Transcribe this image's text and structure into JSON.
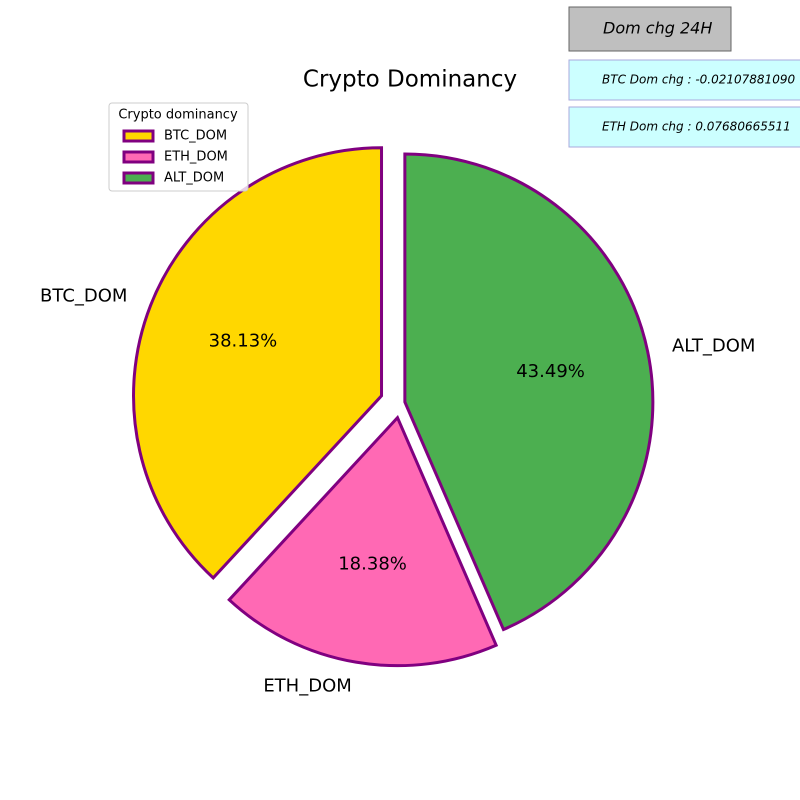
{
  "chart_data": {
    "type": "pie",
    "title": "Crypto Dominancy",
    "categories": [
      "BTC_DOM",
      "ETH_DOM",
      "ALT_DOM"
    ],
    "values": [
      38.13,
      18.38,
      43.49
    ],
    "value_labels": [
      "38.13%",
      "18.38%",
      "43.49%"
    ],
    "colors": [
      "#ffd700",
      "#ff69b4",
      "#4caf50"
    ],
    "edge_color": "#800080",
    "explode": [
      0.08,
      0.06,
      0.02
    ],
    "start_angle": 90,
    "legend": {
      "title": "Crypto dominancy",
      "loc": "upper left"
    },
    "annotations": [
      "Dom chg 24H",
      "BTC Dom chg : -0.02107881090",
      "ETH Dom chg : 0.07680665511"
    ]
  }
}
